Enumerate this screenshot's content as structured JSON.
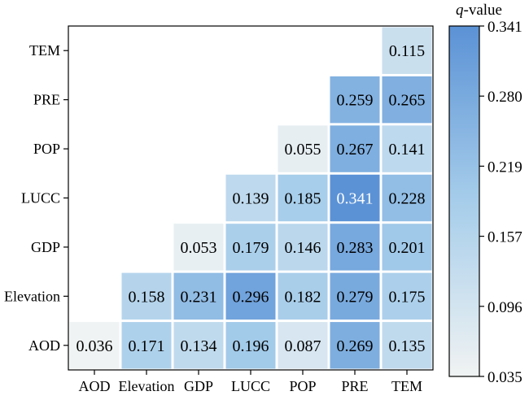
{
  "chart_data": {
    "type": "heatmap",
    "title": "",
    "xlabel": "",
    "ylabel": "",
    "x_categories": [
      "AOD",
      "Elevation",
      "GDP",
      "LUCC",
      "POP",
      "PRE",
      "TEM"
    ],
    "y_categories": [
      "TEM",
      "PRE",
      "POP",
      "LUCC",
      "GDP",
      "Elevation",
      "AOD"
    ],
    "matrix": [
      [
        null,
        null,
        null,
        null,
        null,
        null,
        0.115
      ],
      [
        null,
        null,
        null,
        null,
        null,
        0.259,
        0.265
      ],
      [
        null,
        null,
        null,
        null,
        0.055,
        0.267,
        0.141
      ],
      [
        null,
        null,
        null,
        0.139,
        0.185,
        0.341,
        0.228
      ],
      [
        null,
        null,
        0.053,
        0.179,
        0.146,
        0.283,
        0.201
      ],
      [
        null,
        0.158,
        0.231,
        0.296,
        0.182,
        0.279,
        0.175
      ],
      [
        0.036,
        0.171,
        0.134,
        0.196,
        0.087,
        0.269,
        0.135
      ]
    ],
    "colorbar": {
      "title_var": "q",
      "title_suffix": "-value",
      "min": 0.035,
      "max": 0.341,
      "ticks": [
        "0.341",
        "0.280",
        "0.219",
        "0.157",
        "0.096",
        "0.035"
      ],
      "color_low": "#f0f3f3",
      "color_high": "#5b92d6"
    },
    "grid": false,
    "legend": "colorbar-right"
  }
}
